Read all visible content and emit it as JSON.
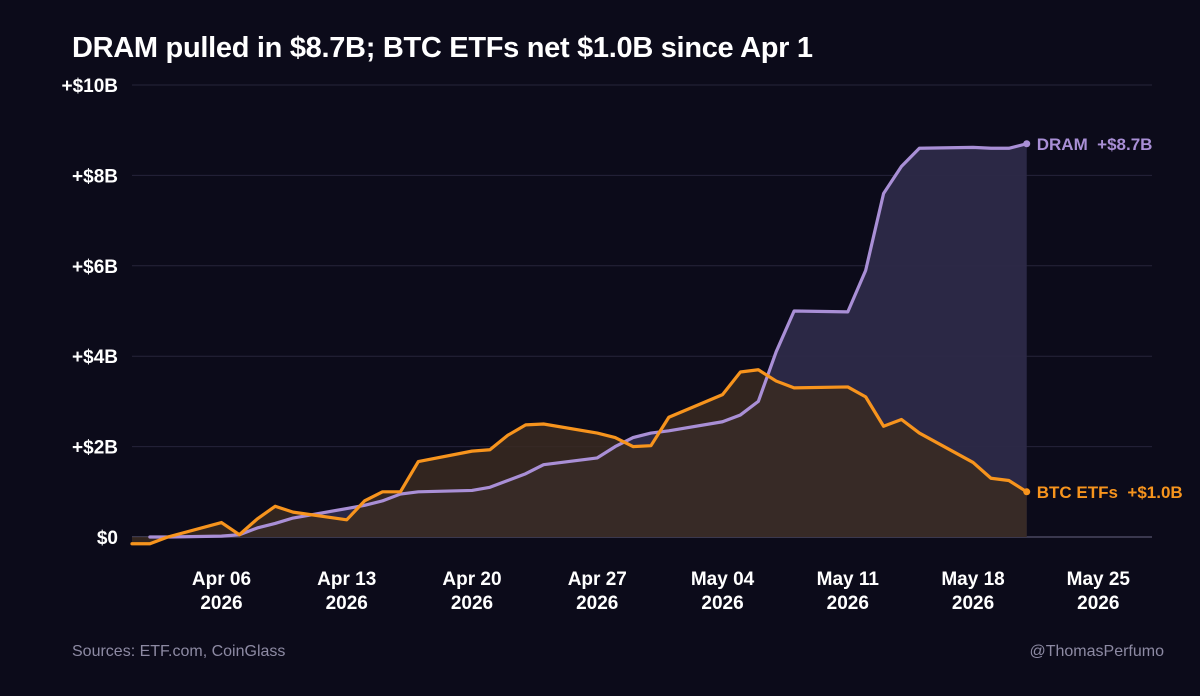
{
  "title": "DRAM pulled in $8.7B; BTC ETFs net $1.0B since Apr 1",
  "footer": {
    "source": "Sources: ETF.com, CoinGlass",
    "handle": "@ThomasPerfumo"
  },
  "chart_data": {
    "type": "area",
    "title": "DRAM pulled in $8.7B; BTC ETFs net $1.0B since Apr 1",
    "xlabel": "",
    "ylabel": "",
    "y_unit": "USD billions",
    "ylim": [
      0,
      10
    ],
    "y_ticks": [
      {
        "value": 0,
        "label": "$0"
      },
      {
        "value": 2,
        "label": "+$2B"
      },
      {
        "value": 4,
        "label": "+$4B"
      },
      {
        "value": 6,
        "label": "+$6B"
      },
      {
        "value": 8,
        "label": "+$8B"
      },
      {
        "value": 10,
        "label": "+$10B"
      }
    ],
    "x_ticks": [
      {
        "date": "2026-04-06",
        "label": [
          "Apr 06",
          "2026"
        ]
      },
      {
        "date": "2026-04-13",
        "label": [
          "Apr 13",
          "2026"
        ]
      },
      {
        "date": "2026-04-20",
        "label": [
          "Apr 20",
          "2026"
        ]
      },
      {
        "date": "2026-04-27",
        "label": [
          "Apr 27",
          "2026"
        ]
      },
      {
        "date": "2026-05-04",
        "label": [
          "May 04",
          "2026"
        ]
      },
      {
        "date": "2026-05-11",
        "label": [
          "May 11",
          "2026"
        ]
      },
      {
        "date": "2026-05-18",
        "label": [
          "May 18",
          "2026"
        ]
      },
      {
        "date": "2026-05-25",
        "label": [
          "May 25",
          "2026"
        ]
      }
    ],
    "xlim": [
      "2026-04-01",
      "2026-05-28"
    ],
    "grid": true,
    "legend": "line-end labels",
    "series": [
      {
        "name": "DRAM",
        "end_label": "DRAM  +$8.7B",
        "color": "#a98fd6",
        "fill": "#2d2a48",
        "points": [
          [
            "2026-04-02",
            0.0
          ],
          [
            "2026-04-03",
            0.0
          ],
          [
            "2026-04-06",
            0.02
          ],
          [
            "2026-04-07",
            0.05
          ],
          [
            "2026-04-08",
            0.2
          ],
          [
            "2026-04-09",
            0.3
          ],
          [
            "2026-04-10",
            0.42
          ],
          [
            "2026-04-13",
            0.63
          ],
          [
            "2026-04-14",
            0.7
          ],
          [
            "2026-04-15",
            0.8
          ],
          [
            "2026-04-16",
            0.95
          ],
          [
            "2026-04-17",
            1.0
          ],
          [
            "2026-04-20",
            1.03
          ],
          [
            "2026-04-21",
            1.1
          ],
          [
            "2026-04-22",
            1.25
          ],
          [
            "2026-04-23",
            1.4
          ],
          [
            "2026-04-24",
            1.6
          ],
          [
            "2026-04-27",
            1.75
          ],
          [
            "2026-04-28",
            2.0
          ],
          [
            "2026-04-29",
            2.2
          ],
          [
            "2026-04-30",
            2.3
          ],
          [
            "2026-05-01",
            2.35
          ],
          [
            "2026-05-04",
            2.55
          ],
          [
            "2026-05-05",
            2.7
          ],
          [
            "2026-05-06",
            3.0
          ],
          [
            "2026-05-07",
            4.1
          ],
          [
            "2026-05-08",
            5.0
          ],
          [
            "2026-05-11",
            4.98
          ],
          [
            "2026-05-12",
            5.9
          ],
          [
            "2026-05-13",
            7.6
          ],
          [
            "2026-05-14",
            8.2
          ],
          [
            "2026-05-15",
            8.6
          ],
          [
            "2026-05-18",
            8.62
          ],
          [
            "2026-05-19",
            8.6
          ],
          [
            "2026-05-20",
            8.6
          ],
          [
            "2026-05-21",
            8.7
          ]
        ]
      },
      {
        "name": "BTC ETFs",
        "end_label": "BTC ETFs  +$1.0B",
        "color": "#f7941d",
        "fill": "#3a2a21",
        "points": [
          [
            "2026-04-01",
            -0.15
          ],
          [
            "2026-04-02",
            -0.15
          ],
          [
            "2026-04-03",
            0.0
          ],
          [
            "2026-04-06",
            0.32
          ],
          [
            "2026-04-07",
            0.05
          ],
          [
            "2026-04-08",
            0.4
          ],
          [
            "2026-04-09",
            0.68
          ],
          [
            "2026-04-10",
            0.55
          ],
          [
            "2026-04-13",
            0.38
          ],
          [
            "2026-04-14",
            0.8
          ],
          [
            "2026-04-15",
            1.0
          ],
          [
            "2026-04-16",
            1.0
          ],
          [
            "2026-04-17",
            1.67
          ],
          [
            "2026-04-20",
            1.9
          ],
          [
            "2026-04-21",
            1.93
          ],
          [
            "2026-04-22",
            2.25
          ],
          [
            "2026-04-23",
            2.48
          ],
          [
            "2026-04-24",
            2.5
          ],
          [
            "2026-04-27",
            2.3
          ],
          [
            "2026-04-28",
            2.2
          ],
          [
            "2026-04-29",
            2.0
          ],
          [
            "2026-04-30",
            2.02
          ],
          [
            "2026-05-01",
            2.65
          ],
          [
            "2026-05-04",
            3.15
          ],
          [
            "2026-05-05",
            3.65
          ],
          [
            "2026-05-06",
            3.7
          ],
          [
            "2026-05-07",
            3.45
          ],
          [
            "2026-05-08",
            3.3
          ],
          [
            "2026-05-11",
            3.32
          ],
          [
            "2026-05-12",
            3.1
          ],
          [
            "2026-05-13",
            2.45
          ],
          [
            "2026-05-14",
            2.6
          ],
          [
            "2026-05-15",
            2.3
          ],
          [
            "2026-05-18",
            1.65
          ],
          [
            "2026-05-19",
            1.3
          ],
          [
            "2026-05-20",
            1.25
          ],
          [
            "2026-05-21",
            1.0
          ]
        ]
      }
    ]
  }
}
